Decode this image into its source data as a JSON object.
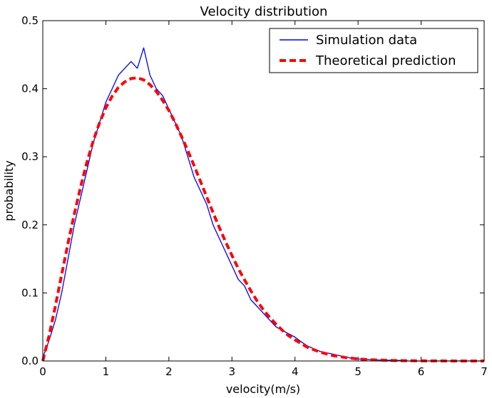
{
  "chart_data": {
    "type": "line",
    "title": "Velocity distribution",
    "xlabel": "velocity(m/s)",
    "ylabel": "probability",
    "xlim": [
      0,
      7
    ],
    "ylim": [
      0,
      0.5
    ],
    "xticks": [
      0,
      1,
      2,
      3,
      4,
      5,
      6,
      7
    ],
    "xtick_labels": [
      "0",
      "1",
      "2",
      "3",
      "4",
      "5",
      "6",
      "7"
    ],
    "yticks": [
      0,
      0.1,
      0.2,
      0.3,
      0.4,
      0.5
    ],
    "ytick_labels": [
      "0.0",
      "0.1",
      "0.2",
      "0.3",
      "0.4",
      "0.5"
    ],
    "grid": false,
    "legend_position": "top-right",
    "series": [
      {
        "name": "Simulation data",
        "style": "solid",
        "color": "#0000ff",
        "x": [
          0.0,
          0.1,
          0.2,
          0.3,
          0.4,
          0.5,
          0.6,
          0.7,
          0.8,
          0.9,
          1.0,
          1.1,
          1.2,
          1.3,
          1.4,
          1.5,
          1.6,
          1.7,
          1.8,
          1.9,
          2.0,
          2.1,
          2.2,
          2.3,
          2.4,
          2.5,
          2.6,
          2.7,
          2.8,
          2.9,
          3.0,
          3.1,
          3.2,
          3.3,
          3.4,
          3.5,
          3.6,
          3.7,
          3.8,
          3.9,
          4.0,
          4.1,
          4.2,
          4.3,
          4.4,
          4.5,
          4.6,
          4.7,
          4.8,
          4.9,
          5.0,
          5.2,
          5.4,
          5.6,
          5.8,
          6.0,
          6.5,
          7.0
        ],
        "values": [
          0.005,
          0.03,
          0.06,
          0.1,
          0.15,
          0.2,
          0.24,
          0.28,
          0.32,
          0.35,
          0.38,
          0.4,
          0.42,
          0.43,
          0.44,
          0.43,
          0.46,
          0.42,
          0.4,
          0.39,
          0.37,
          0.35,
          0.33,
          0.3,
          0.27,
          0.25,
          0.23,
          0.2,
          0.18,
          0.16,
          0.14,
          0.12,
          0.11,
          0.09,
          0.08,
          0.07,
          0.06,
          0.05,
          0.045,
          0.04,
          0.035,
          0.028,
          0.022,
          0.018,
          0.014,
          0.012,
          0.01,
          0.008,
          0.006,
          0.004,
          0.003,
          0.002,
          0.001,
          0.001,
          0.0,
          0.0,
          0.0,
          0.0
        ]
      },
      {
        "name": "Theoretical prediction",
        "style": "dashed",
        "color": "#ff0000",
        "x": [
          0.0,
          0.1,
          0.2,
          0.3,
          0.4,
          0.5,
          0.6,
          0.7,
          0.8,
          0.9,
          1.0,
          1.1,
          1.2,
          1.3,
          1.4,
          1.5,
          1.6,
          1.7,
          1.8,
          1.9,
          2.0,
          2.1,
          2.2,
          2.3,
          2.4,
          2.5,
          2.6,
          2.7,
          2.8,
          2.9,
          3.0,
          3.1,
          3.2,
          3.3,
          3.4,
          3.5,
          3.6,
          3.7,
          3.8,
          3.9,
          4.0,
          4.2,
          4.4,
          4.6,
          4.8,
          5.0,
          5.2,
          5.4,
          5.6,
          5.8,
          6.0,
          6.5,
          7.0
        ],
        "values": [
          0.0,
          0.037,
          0.081,
          0.127,
          0.173,
          0.216,
          0.256,
          0.292,
          0.323,
          0.35,
          0.372,
          0.389,
          0.402,
          0.41,
          0.415,
          0.416,
          0.413,
          0.406,
          0.396,
          0.383,
          0.368,
          0.35,
          0.33,
          0.309,
          0.287,
          0.264,
          0.241,
          0.218,
          0.196,
          0.175,
          0.155,
          0.136,
          0.119,
          0.103,
          0.088,
          0.075,
          0.064,
          0.054,
          0.045,
          0.037,
          0.031,
          0.02,
          0.013,
          0.008,
          0.005,
          0.003,
          0.0018,
          0.0011,
          0.0006,
          0.0004,
          0.0002,
          0.0,
          0.0
        ]
      }
    ]
  }
}
